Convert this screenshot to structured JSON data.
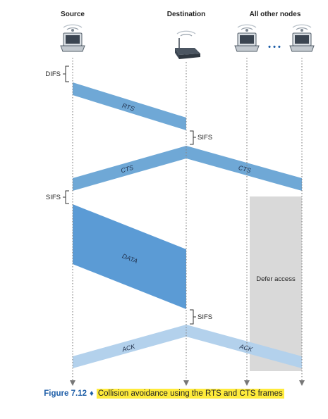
{
  "nodes": {
    "source": "Source",
    "destination": "Destination",
    "others": "All other nodes",
    "ellipsis": "• • •"
  },
  "intervals": {
    "difs": "DIFS",
    "sifs_1": "SIFS",
    "sifs_2": "SIFS",
    "sifs_3": "SIFS"
  },
  "frames": {
    "rts": "RTS",
    "cts_source": "CTS",
    "cts_others": "CTS",
    "data": "DATA",
    "ack_source": "ACK",
    "ack_others": "ACK"
  },
  "defer_label": "Defer access",
  "caption": {
    "number": "Figure 7.12",
    "separator": "♦",
    "text": "Collision avoidance using the RTS and CTS frames"
  },
  "colors": {
    "frame_medium": "#6fa8d6",
    "frame_dark": "#5b9bd5",
    "frame_light": "#b3d1ec",
    "defer_box": "#d9d9d9",
    "caption_blue": "#1f5fa8",
    "caption_highlight": "#ffeb3b"
  }
}
